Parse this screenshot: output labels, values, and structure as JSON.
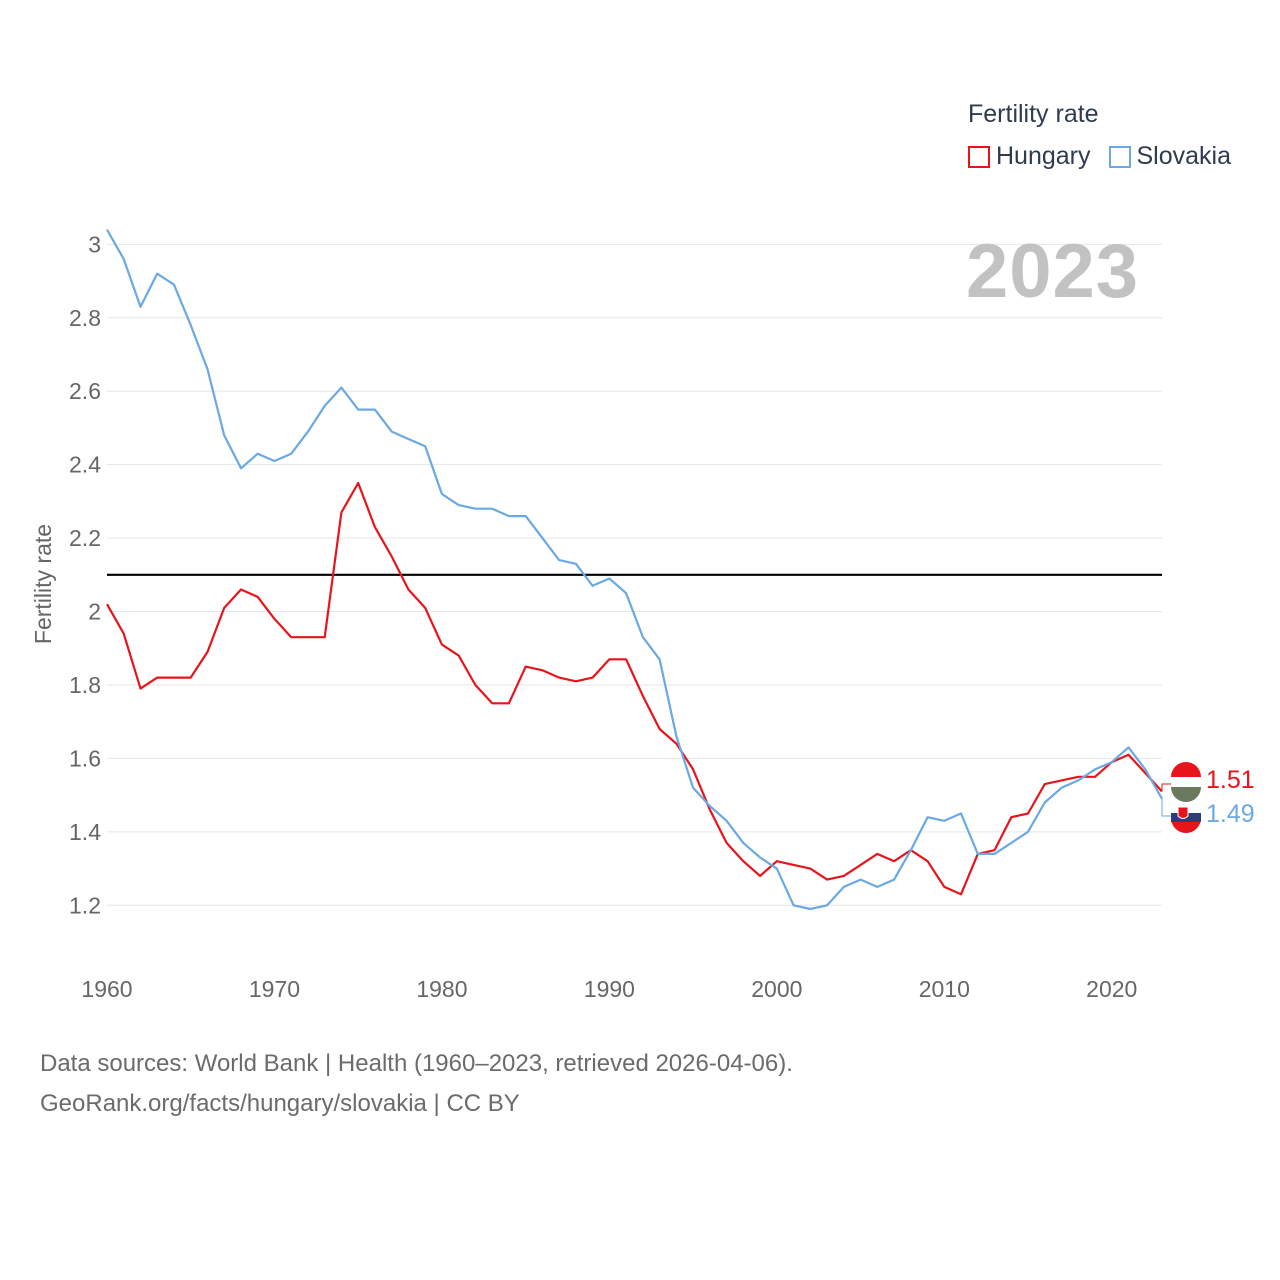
{
  "legend": {
    "title": "Fertility rate",
    "series": [
      {
        "name": "Hungary",
        "color": "#e8141b"
      },
      {
        "name": "Slovakia",
        "color": "#6aa9e4"
      }
    ]
  },
  "year_label": "2023",
  "footer": {
    "line1": "Data sources: World Bank | Health (1960–2023, retrieved 2026-04-06).",
    "line2": "GeoRank.org/facts/hungary/slovakia | CC BY"
  },
  "chart_data": {
    "type": "line",
    "title": "",
    "xlabel": "",
    "ylabel": "Fertility rate",
    "xlim": [
      1960,
      2023
    ],
    "ylim": [
      1.1,
      3.05
    ],
    "x_ticks": [
      1960,
      1970,
      1980,
      1990,
      2000,
      2010,
      2020
    ],
    "y_ticks": [
      1.2,
      1.4,
      1.6,
      1.8,
      2,
      2.2,
      2.4,
      2.6,
      2.8,
      3
    ],
    "y_tick_labels": [
      "1.2",
      "1.4",
      "1.6",
      "1.8",
      "2",
      "2.2",
      "2.4",
      "2.6",
      "2.8",
      "3"
    ],
    "reference_line": {
      "y": 2.1,
      "color": "#000000"
    },
    "x": [
      1960,
      1961,
      1962,
      1963,
      1964,
      1965,
      1966,
      1967,
      1968,
      1969,
      1970,
      1971,
      1972,
      1973,
      1974,
      1975,
      1976,
      1977,
      1978,
      1979,
      1980,
      1981,
      1982,
      1983,
      1984,
      1985,
      1986,
      1987,
      1988,
      1989,
      1990,
      1991,
      1992,
      1993,
      1994,
      1995,
      1996,
      1997,
      1998,
      1999,
      2000,
      2001,
      2002,
      2003,
      2004,
      2005,
      2006,
      2007,
      2008,
      2009,
      2010,
      2011,
      2012,
      2013,
      2014,
      2015,
      2016,
      2017,
      2018,
      2019,
      2020,
      2021,
      2022,
      2023
    ],
    "series": [
      {
        "name": "Hungary",
        "color": "#e8141b",
        "end_label": "1.51",
        "values": [
          2.02,
          1.94,
          1.79,
          1.82,
          1.82,
          1.82,
          1.89,
          2.01,
          2.06,
          2.04,
          1.98,
          1.93,
          1.93,
          1.93,
          2.27,
          2.35,
          2.23,
          2.15,
          2.06,
          2.01,
          1.91,
          1.88,
          1.8,
          1.75,
          1.75,
          1.85,
          1.84,
          1.82,
          1.81,
          1.82,
          1.87,
          1.87,
          1.77,
          1.68,
          1.64,
          1.57,
          1.46,
          1.37,
          1.32,
          1.28,
          1.32,
          1.31,
          1.3,
          1.27,
          1.28,
          1.31,
          1.34,
          1.32,
          1.35,
          1.32,
          1.25,
          1.23,
          1.34,
          1.35,
          1.44,
          1.45,
          1.53,
          1.54,
          1.55,
          1.55,
          1.59,
          1.61,
          1.56,
          1.51
        ]
      },
      {
        "name": "Slovakia",
        "color": "#6aa9e4",
        "end_label": "1.49",
        "values": [
          3.04,
          2.96,
          2.83,
          2.92,
          2.89,
          2.78,
          2.66,
          2.48,
          2.39,
          2.43,
          2.41,
          2.43,
          2.49,
          2.56,
          2.61,
          2.55,
          2.55,
          2.49,
          2.47,
          2.45,
          2.32,
          2.29,
          2.28,
          2.28,
          2.26,
          2.26,
          2.2,
          2.14,
          2.13,
          2.07,
          2.09,
          2.05,
          1.93,
          1.87,
          1.66,
          1.52,
          1.47,
          1.43,
          1.37,
          1.33,
          1.3,
          1.2,
          1.19,
          1.2,
          1.25,
          1.27,
          1.25,
          1.27,
          1.35,
          1.44,
          1.43,
          1.45,
          1.34,
          1.34,
          1.37,
          1.4,
          1.48,
          1.52,
          1.54,
          1.57,
          1.59,
          1.63,
          1.57,
          1.49
        ]
      }
    ]
  }
}
